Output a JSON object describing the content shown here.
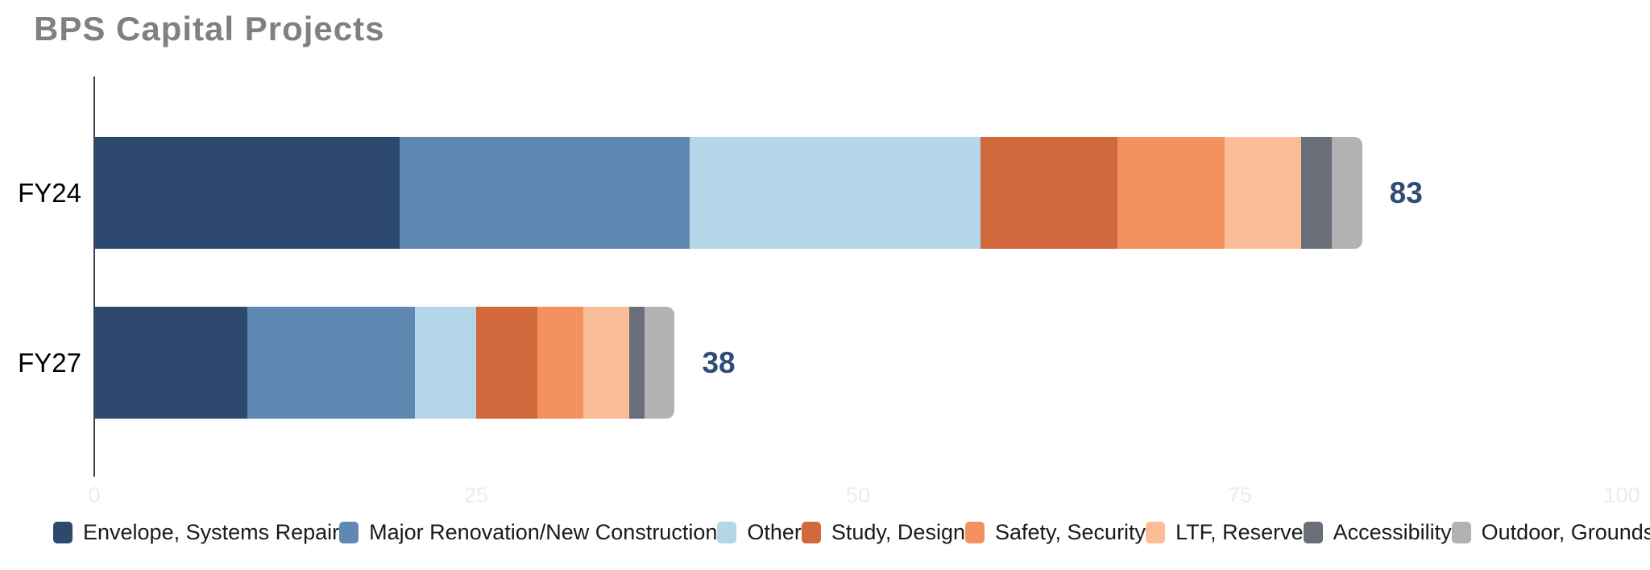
{
  "title": "BPS Capital Projects",
  "chart_data": {
    "type": "bar",
    "orientation": "horizontal",
    "stacked": true,
    "title": "BPS Capital Projects",
    "categories": [
      "FY24",
      "FY27"
    ],
    "series": [
      {
        "name": "Envelope, Systems Repair",
        "color": "#2d4a6e",
        "values": [
          20,
          10
        ]
      },
      {
        "name": "Major Renovation/New Construction",
        "color": "#5f89b2",
        "values": [
          19,
          11
        ]
      },
      {
        "name": "Other",
        "color": "#b3d7e8",
        "values": [
          19,
          4
        ]
      },
      {
        "name": "Study, Design",
        "color": "#d2693c",
        "values": [
          9,
          4
        ]
      },
      {
        "name": "Safety, Security",
        "color": "#f3925f",
        "values": [
          7,
          3
        ]
      },
      {
        "name": "LTF, Reserve",
        "color": "#f9bd98",
        "values": [
          5,
          3
        ]
      },
      {
        "name": "Accessibility",
        "color": "#696e78",
        "values": [
          2,
          1
        ]
      },
      {
        "name": "Outdoor, Grounds",
        "color": "#b2b2b2",
        "values": [
          2,
          2
        ]
      }
    ],
    "totals": [
      83,
      38
    ],
    "x_ticks": [
      0,
      25,
      50,
      75,
      100
    ],
    "xlim": [
      0,
      100
    ],
    "grid": false,
    "legend_position": "bottom"
  },
  "colors": {
    "title_text": "#808080",
    "total_label": "#2e4d76",
    "tick_label": "#ececec",
    "axis_line": "#3d3d3d",
    "category_label": "#000000",
    "legend_text": "#1a1a1a",
    "background": "#ffffff"
  }
}
